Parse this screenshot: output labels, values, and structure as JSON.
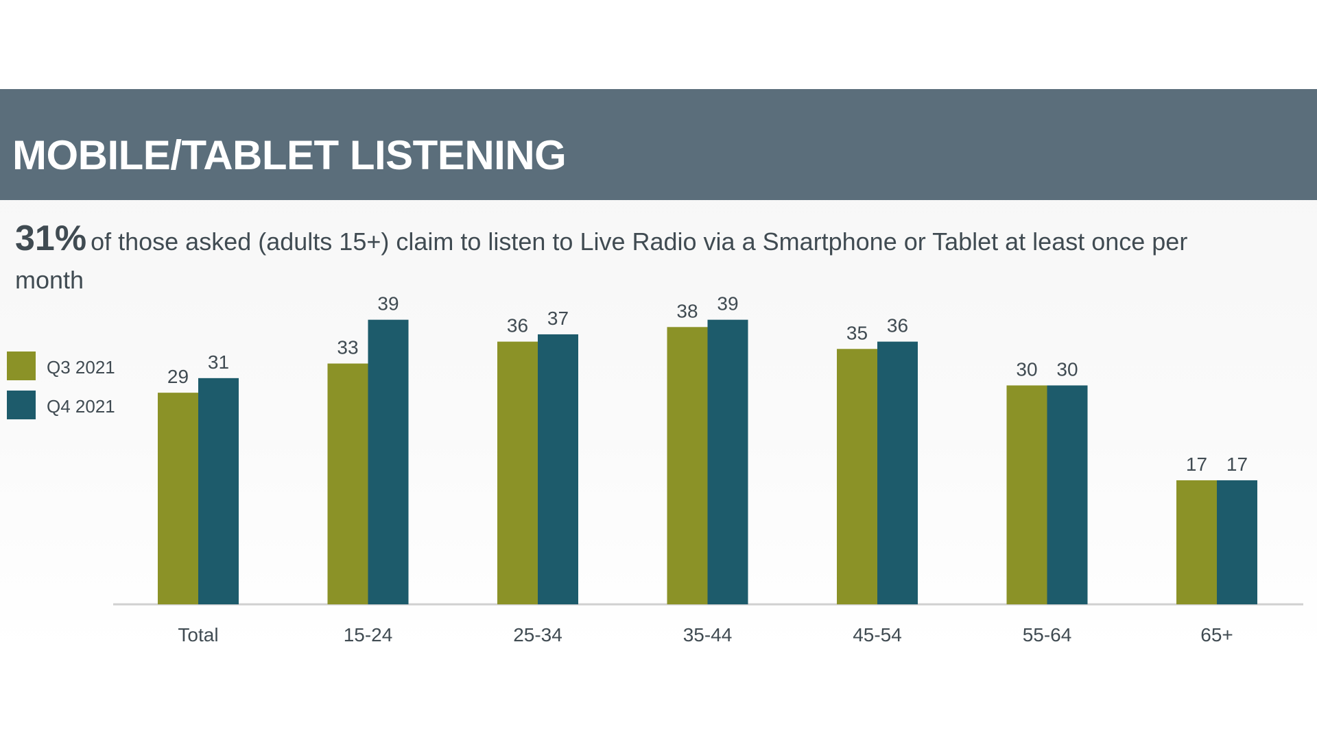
{
  "title": "MOBILE/TABLET LISTENING",
  "subtitle": {
    "highlight": "31%",
    "text": "of those asked (adults 15+) claim to listen to Live Radio via a Smartphone or Tablet at least once per month"
  },
  "colors": {
    "title_bar": "#5b6e7b",
    "series_q3": "#8b9227",
    "series_q4": "#1d5b6b"
  },
  "chart_data": {
    "type": "bar",
    "categories": [
      "Total",
      "15-24",
      "25-34",
      "35-44",
      "45-54",
      "55-64",
      "65+"
    ],
    "series": [
      {
        "name": "Q3 2021",
        "color": "#8b9227",
        "values": [
          29,
          33,
          36,
          38,
          35,
          30,
          17
        ]
      },
      {
        "name": "Q4 2021",
        "color": "#1d5b6b",
        "values": [
          31,
          39,
          37,
          39,
          36,
          30,
          17
        ]
      }
    ],
    "ylim": [
      0,
      40
    ],
    "grid": false,
    "legend": "left",
    "data_labels": true
  }
}
